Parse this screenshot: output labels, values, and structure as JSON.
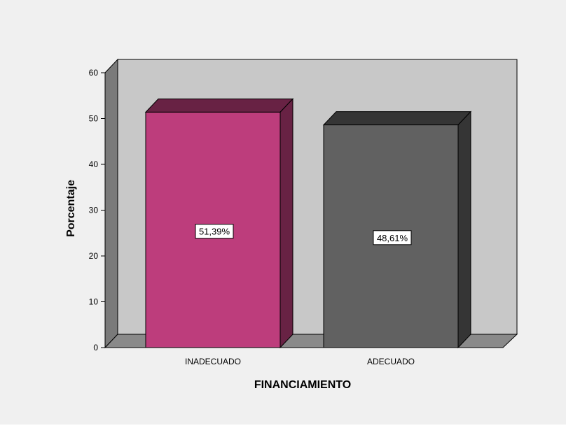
{
  "chart_data": {
    "type": "bar",
    "categories": [
      "INADECUADO",
      "ADECUADO"
    ],
    "values": [
      51.39,
      48.61
    ],
    "data_labels": [
      "51,39%",
      "48,61%"
    ],
    "xlabel": "FINANCIAMIENTO",
    "ylabel": "Porcentaje",
    "ylim": [
      0,
      60
    ],
    "yticks": [
      0,
      10,
      20,
      30,
      40,
      50,
      60
    ],
    "grid": false,
    "style": "3d",
    "colors": {
      "INADECUADO": "#bd3d7c",
      "ADECUADO": "#616161",
      "back_wall": "#c8c8c8",
      "side_wall": "#7a7a7a",
      "floor": "#8a8a8a"
    }
  }
}
